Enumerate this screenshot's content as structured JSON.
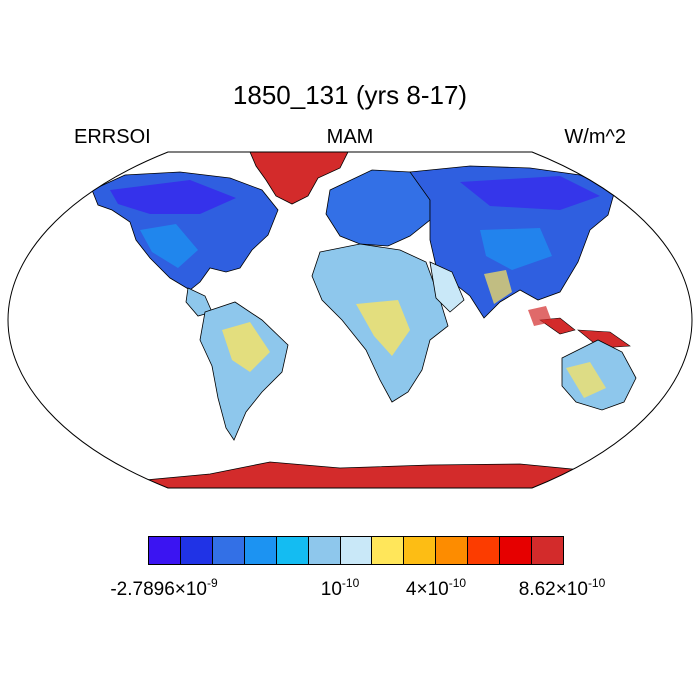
{
  "title": "1850_131 (yrs 8-17)",
  "left_label": "ERRSOI",
  "center_label": "MAM",
  "right_label": "W/m^2",
  "colorbar": {
    "colors": [
      "#3b14f2",
      "#2033e6",
      "#3370e6",
      "#1c93f2",
      "#14bcf2",
      "#8ec7ec",
      "#c9e8f8",
      "#ffe65a",
      "#fdbd14",
      "#fd8c00",
      "#fc3c00",
      "#e60000",
      "#d32b2b"
    ],
    "labels": [
      {
        "mantissa": "-2.7896×10",
        "exp": "-9"
      },
      {
        "mantissa": "10",
        "exp": "-10"
      },
      {
        "mantissa": "4×10",
        "exp": "-10"
      },
      {
        "mantissa": "8.62×10",
        "exp": "-10"
      }
    ]
  }
}
